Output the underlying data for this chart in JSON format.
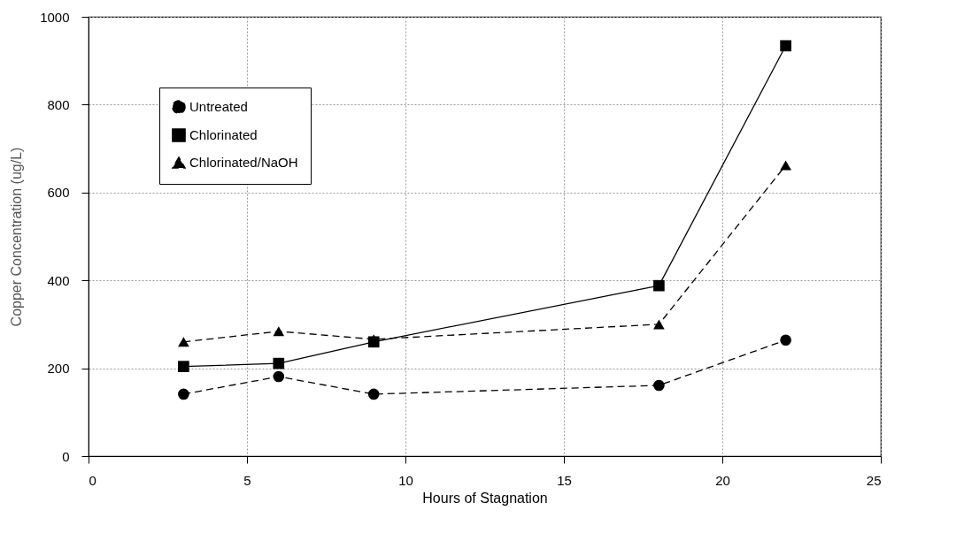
{
  "chart_data": {
    "type": "line",
    "xlabel": "Hours of Stagnation",
    "ylabel": "Copper Concentration (ug/L)",
    "x": [
      3,
      6,
      9,
      18,
      22
    ],
    "series": [
      {
        "name": "Untreated",
        "color": "#000000",
        "marker": "circle",
        "line_style": "dashed",
        "values": [
          141,
          181,
          141,
          161,
          264
        ]
      },
      {
        "name": "Chlorinated",
        "color": "#000000",
        "marker": "square",
        "line_style": "solid",
        "values": [
          204,
          211,
          260,
          388,
          934
        ]
      },
      {
        "name": "Chlorinated/NaOH",
        "color": "#000000",
        "marker": "triangle",
        "line_style": "dashed",
        "values": [
          260,
          284,
          266,
          300,
          662
        ]
      }
    ],
    "xlim": [
      0,
      25
    ],
    "xticks": [
      0,
      5,
      10,
      15,
      20,
      25
    ],
    "ylim": [
      0,
      1000
    ],
    "yticks": [
      0,
      200,
      400,
      600,
      800,
      1000
    ],
    "grid": true,
    "legend": "top left"
  }
}
